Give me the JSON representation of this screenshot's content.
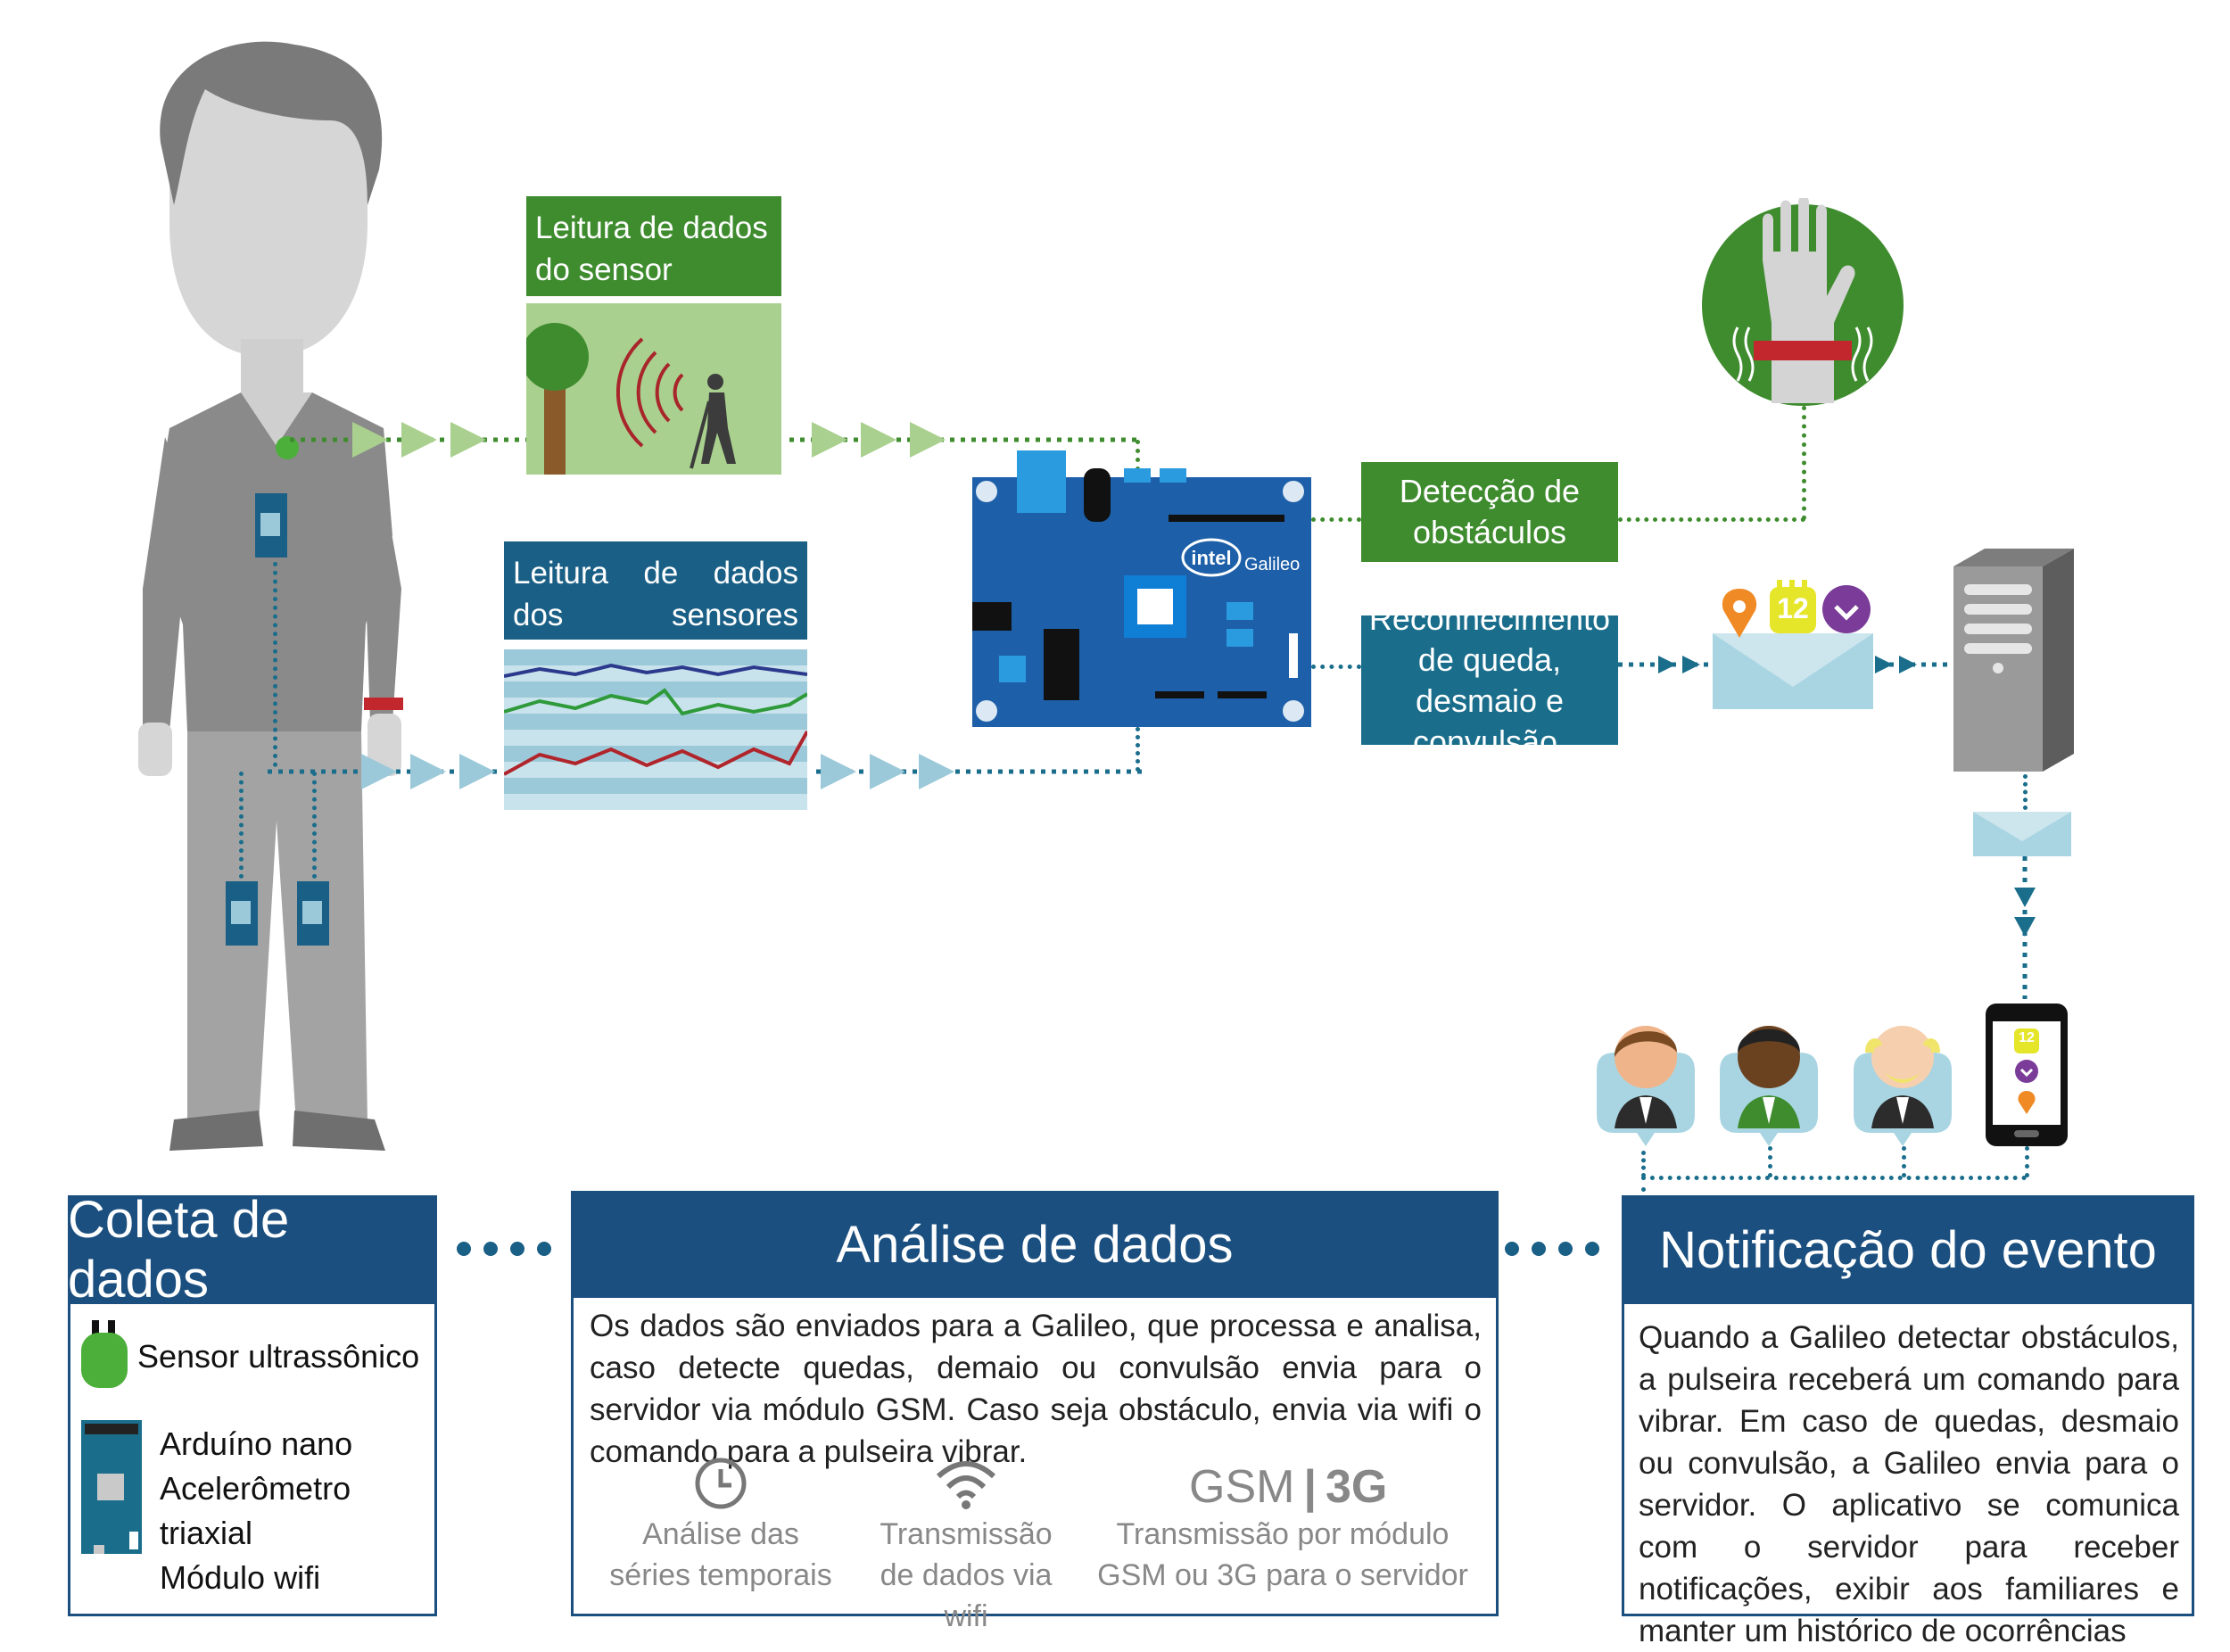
{
  "top": {
    "ultrasonic_read_label": "Leitura de dados do sensor ultrassônico",
    "accel_read_label": "Leitura de dados dos sensores acelerômetro",
    "obstacle_label": "Detecção de obstáculos",
    "fall_label": "Reconhecimento de queda, desmaio e convulsão.",
    "board_brand": "intel",
    "board_name": "Galileo",
    "calendar_number": "12",
    "phone_calendar_number": "12"
  },
  "panels": {
    "coleta": {
      "title": "Coleta de dados",
      "sensor_label": "Sensor ultrassônico",
      "board_lines": [
        "Arduíno nano",
        "Acelerômetro triaxial",
        "Módulo wifi"
      ]
    },
    "analise": {
      "title": "Análise de dados",
      "text": "Os dados são enviados para a Galileo, que processa e analisa, caso detecte quedas, demaio ou convulsão envia para o servidor via módulo GSM. Caso seja obstáculo, envia via wifi o comando para a pulseira vibrar.",
      "features": [
        {
          "icon": "clock-icon",
          "label": "Análise das séries temporais"
        },
        {
          "icon": "wifi-icon",
          "label": "Transmissão de dados via wifi"
        },
        {
          "icon": "gsm-3g-icon",
          "badge_left": "GSM",
          "badge_right": "3G",
          "label": "Transmissão por módulo GSM ou 3G para o servidor"
        }
      ]
    },
    "notificacao": {
      "title": "Notificação do evento",
      "text": "Quando a Galileo detectar obstáculos, a pulseira receberá um comando para vibrar. Em caso de quedas, desmaio ou convulsão, a Galileo envia para o servidor. O aplicativo se comunica com o servidor para receber notificações, exibir aos familiares e manter um histórico de ocorrências"
    }
  },
  "colors": {
    "green": "#3f8c2f",
    "teal": "#1a6e8c",
    "navy": "#1b4f7f",
    "light_green": "#a9d08e",
    "light_blue": "#9cc9d9",
    "board_blue": "#1d5fa8"
  }
}
